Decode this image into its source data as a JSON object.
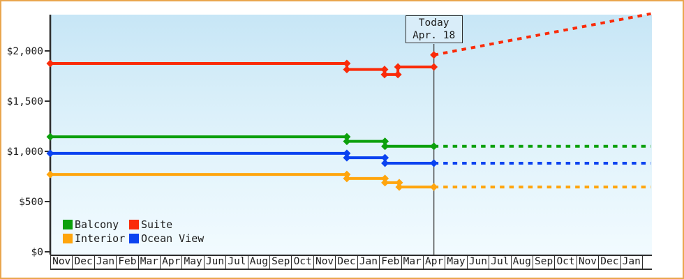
{
  "window": {
    "background_color": "#ffffff",
    "border_color": "#e9a64e"
  },
  "today_box": {
    "line1": "Today",
    "line2": "Apr. 18"
  },
  "chart_data": {
    "type": "line",
    "title": "",
    "xlabel": "",
    "ylabel": "",
    "grid": false,
    "legend_position": "bottom-left-inside",
    "axis_color": "#2d2d2d",
    "today_line_color": "#4b4b4b",
    "y_axis": {
      "tick_labels": [
        "$0",
        "$500",
        "$1,000",
        "$1,500",
        "$2,000"
      ],
      "tick_values": [
        0,
        500,
        1000,
        1500,
        2000
      ],
      "ylim": [
        0,
        2400
      ]
    },
    "x_axis": {
      "months": [
        "Nov",
        "Dec",
        "Jan",
        "Feb",
        "Mar",
        "Apr",
        "May",
        "Jun",
        "Jul",
        "Aug",
        "Sep",
        "Oct",
        "Nov",
        "Dec",
        "Jan",
        "Feb",
        "Mar",
        "Apr",
        "May",
        "Jun",
        "Jul",
        "Aug",
        "Sep",
        "Oct",
        "Nov",
        "Dec",
        "Jan"
      ]
    },
    "today": {
      "month_frac": 17.5,
      "date_label": "Apr. 18"
    },
    "series": [
      {
        "name": "Balcony",
        "color": "#0ca00c",
        "history": [
          [
            0,
            1145
          ],
          [
            13.53,
            1145
          ],
          [
            13.53,
            1100
          ],
          [
            15.27,
            1100
          ],
          [
            15.27,
            1050
          ],
          [
            17.5,
            1050
          ]
        ],
        "forecast": [
          [
            17.5,
            1050
          ],
          [
            27.4,
            1050
          ]
        ]
      },
      {
        "name": "Suite",
        "color": "#fa2b09",
        "history": [
          [
            0,
            1875
          ],
          [
            13.53,
            1875
          ],
          [
            13.53,
            1815
          ],
          [
            15.25,
            1815
          ],
          [
            15.25,
            1765
          ],
          [
            15.86,
            1765
          ],
          [
            15.86,
            1840
          ],
          [
            17.5,
            1840
          ]
        ],
        "forecast": [
          [
            17.5,
            1960
          ],
          [
            27.4,
            2370
          ]
        ]
      },
      {
        "name": "Interior",
        "color": "#ffa50d",
        "history": [
          [
            0,
            770
          ],
          [
            13.53,
            770
          ],
          [
            13.53,
            730
          ],
          [
            15.27,
            730
          ],
          [
            15.27,
            688
          ],
          [
            15.92,
            688
          ],
          [
            15.92,
            645
          ],
          [
            17.5,
            645
          ]
        ],
        "forecast": [
          [
            17.5,
            645
          ],
          [
            27.4,
            645
          ]
        ]
      },
      {
        "name": "Ocean View",
        "color": "#0b43f0",
        "history": [
          [
            0,
            980
          ],
          [
            13.53,
            980
          ],
          [
            13.53,
            937
          ],
          [
            15.27,
            937
          ],
          [
            15.27,
            882
          ],
          [
            17.5,
            882
          ]
        ],
        "forecast": [
          [
            17.5,
            882
          ],
          [
            27.4,
            882
          ]
        ]
      }
    ]
  }
}
